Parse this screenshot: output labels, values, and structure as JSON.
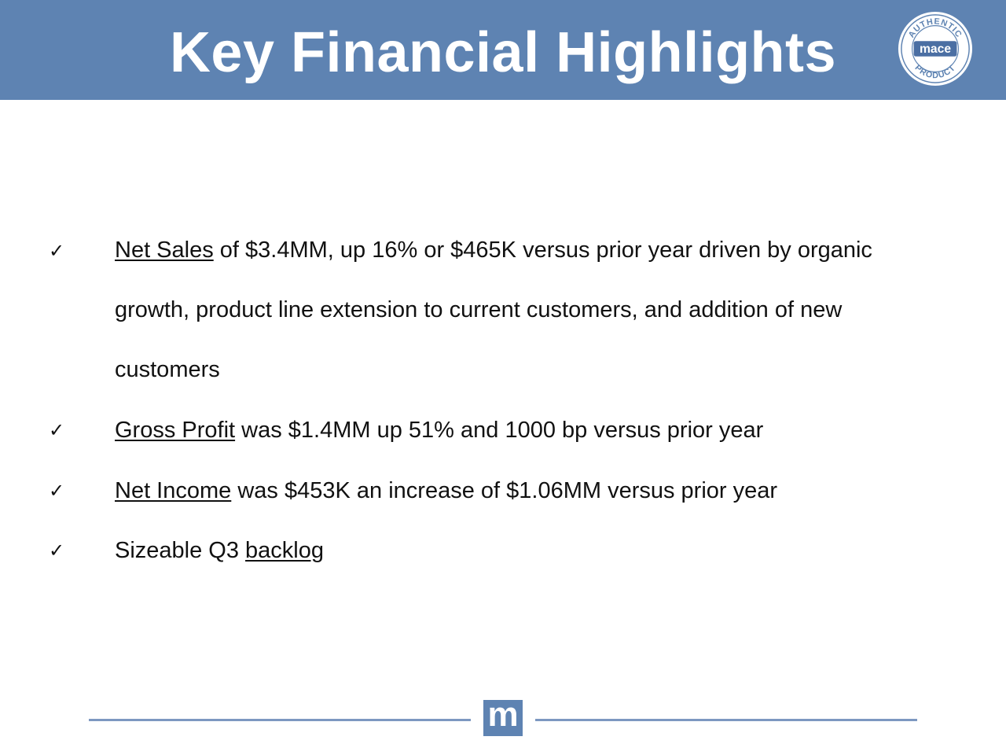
{
  "slide": {
    "title": "Key Financial Highlights",
    "logo": {
      "icon": "mace-authentic-product-seal",
      "brand": "mace",
      "ring_top": "AUTHENTIC",
      "ring_bottom": "PRODUCT"
    },
    "bullets": [
      {
        "check": "✓",
        "lines": [
          {
            "underlined": "Net Sales",
            "rest": " of $3.4MM, up 16% or $465K versus prior year driven by organic"
          },
          {
            "underlined": "",
            "rest": "growth, product line extension to current customers, and addition of new"
          },
          {
            "underlined": "",
            "rest": "customers"
          }
        ]
      },
      {
        "check": "✓",
        "lines": [
          {
            "underlined": "Gross Profit",
            "rest": " was $1.4MM up 51% and 1000 bp versus prior year"
          }
        ]
      },
      {
        "check": "✓",
        "lines": [
          {
            "underlined": "Net Income",
            "rest": " was $453K an increase of $1.06MM versus prior year"
          }
        ]
      },
      {
        "check": "✓",
        "lines": [
          {
            "prefix": "Sizeable Q3 ",
            "underlined": "backlog",
            "rest": ""
          }
        ]
      }
    ],
    "footer": {
      "badge_letter": "m"
    },
    "colors": {
      "header_blue": "#5e83b2",
      "footer_line": "#7d98c1",
      "text": "#111111"
    }
  }
}
